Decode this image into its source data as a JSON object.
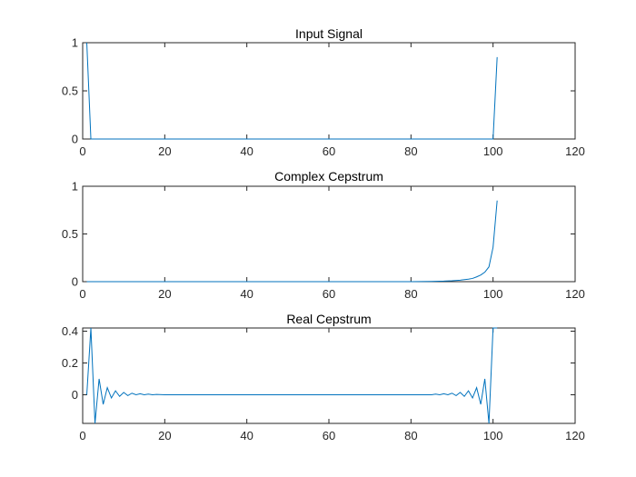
{
  "figure": {
    "background": "#ffffff",
    "axis_color": "#262626",
    "line_color": "#0072bd"
  },
  "chart_data": [
    {
      "type": "line",
      "title": "Input Signal",
      "xlabel": "",
      "ylabel": "",
      "xlim": [
        0,
        120
      ],
      "ylim": [
        0,
        1
      ],
      "xticks": [
        0,
        20,
        40,
        60,
        80,
        100,
        120
      ],
      "yticks": [
        0,
        0.5,
        1
      ],
      "grid": false,
      "series": [
        {
          "x": [
            1,
            2,
            3,
            50,
            99,
            100,
            101
          ],
          "y": [
            1,
            0,
            0,
            0,
            0,
            0,
            0.85
          ]
        }
      ]
    },
    {
      "type": "line",
      "title": "Complex Cepstrum",
      "xlabel": "",
      "ylabel": "",
      "xlim": [
        0,
        120
      ],
      "ylim": [
        0,
        1
      ],
      "xticks": [
        0,
        20,
        40,
        60,
        80,
        100,
        120
      ],
      "yticks": [
        0,
        0.5,
        1
      ],
      "grid": false,
      "series": [
        {
          "x": [
            1,
            10,
            20,
            30,
            40,
            50,
            60,
            70,
            80,
            85,
            88,
            90,
            92,
            94,
            95,
            96,
            97,
            98,
            99,
            100,
            101
          ],
          "y": [
            0,
            0,
            0,
            0,
            0,
            0,
            0,
            0,
            0,
            0.003,
            0.006,
            0.01,
            0.016,
            0.026,
            0.034,
            0.05,
            0.07,
            0.1,
            0.155,
            0.36,
            0.85
          ]
        }
      ]
    },
    {
      "type": "line",
      "title": "Real Cepstrum",
      "xlabel": "",
      "ylabel": "",
      "xlim": [
        0,
        120
      ],
      "ylim": [
        -0.18,
        0.42
      ],
      "xticks": [
        0,
        20,
        40,
        60,
        80,
        100,
        120
      ],
      "yticks": [
        0,
        0.2,
        0.4
      ],
      "grid": false,
      "series": [
        {
          "x": [
            1,
            2,
            3,
            4,
            5,
            6,
            7,
            8,
            9,
            10,
            11,
            12,
            13,
            14,
            15,
            16,
            17,
            18,
            20,
            25,
            30,
            40,
            50,
            60,
            70,
            80,
            85,
            86,
            87,
            88,
            89,
            90,
            91,
            92,
            93,
            94,
            95,
            96,
            97,
            98,
            99,
            100,
            101
          ],
          "y": [
            0,
            0.42,
            -0.18,
            0.1,
            -0.06,
            0.045,
            -0.02,
            0.025,
            -0.01,
            0.015,
            -0.005,
            0.01,
            0.0,
            0.006,
            0.0,
            0.004,
            0.0,
            0.002,
            0,
            0,
            0,
            0,
            0,
            0,
            0,
            0,
            0,
            0.004,
            0.0,
            0.006,
            0.0,
            0.01,
            -0.005,
            0.015,
            -0.01,
            0.025,
            -0.02,
            0.045,
            -0.06,
            0.1,
            -0.18,
            0.42,
            0.42
          ]
        }
      ]
    }
  ]
}
